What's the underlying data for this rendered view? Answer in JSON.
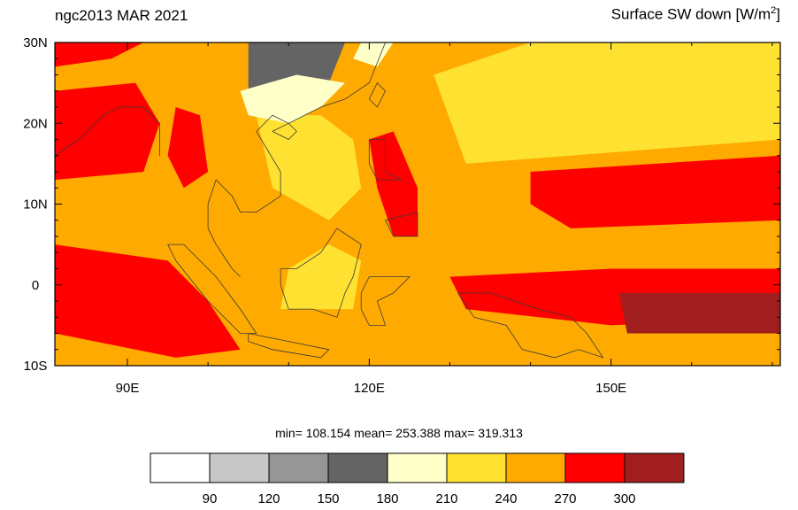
{
  "header": {
    "left_title": "ngc2013 MAR 2021",
    "right_title_main": "Surface SW down [W/m",
    "right_title_sup": "2",
    "right_title_end": "]"
  },
  "stats": "min= 108.154  mean= 253.388  max= 319.313",
  "chart_data": {
    "type": "heatmap",
    "title": "ngc2013 MAR 2021",
    "variable": "Surface SW down [W/m2]",
    "x_axis": {
      "range": [
        81,
        171
      ],
      "ticks": [
        90,
        120,
        150
      ],
      "tick_labels": [
        "90E",
        "120E",
        "150E"
      ],
      "minor_step": 10
    },
    "y_axis": {
      "range": [
        -10,
        30
      ],
      "ticks": [
        -10,
        0,
        10,
        20,
        30
      ],
      "tick_labels": [
        "10S",
        "0",
        "10N",
        "20N",
        "30N"
      ]
    },
    "statistics": {
      "min": 108.154,
      "mean": 253.388,
      "max": 319.313
    },
    "colorbar": {
      "levels": [
        90,
        120,
        150,
        180,
        210,
        240,
        270,
        300
      ],
      "level_labels": [
        "90",
        "120",
        "150",
        "180",
        "210",
        "240",
        "270",
        "300"
      ],
      "colors": [
        "#ffffff",
        "#c8c8c8",
        "#969696",
        "#646464",
        "#ffffc8",
        "#ffe132",
        "#ffaa00",
        "#ff0000",
        "#a01e1e"
      ]
    },
    "regions": [
      {
        "name": "background",
        "value": 255,
        "polygon": [
          [
            81,
            -10
          ],
          [
            171,
            -10
          ],
          [
            171,
            30
          ],
          [
            81,
            30
          ]
        ]
      },
      {
        "name": "pacific-east-clear",
        "value": 230,
        "polygon": [
          [
            132,
            15
          ],
          [
            171,
            18
          ],
          [
            171,
            30
          ],
          [
            140,
            30
          ],
          [
            128,
            26
          ]
        ]
      },
      {
        "name": "south-china-sea-clear",
        "value": 225,
        "polygon": [
          [
            106,
            21
          ],
          [
            114,
            21
          ],
          [
            118,
            18
          ],
          [
            119,
            12
          ],
          [
            115,
            8
          ],
          [
            108,
            12
          ]
        ]
      },
      {
        "name": "borneo-clear",
        "value": 235,
        "polygon": [
          [
            109,
            -3
          ],
          [
            118,
            -3
          ],
          [
            119,
            3
          ],
          [
            115,
            5
          ],
          [
            110,
            2
          ]
        ]
      },
      {
        "name": "bay-of-bengal-red",
        "value": 285,
        "polygon": [
          [
            81,
            13
          ],
          [
            92,
            14
          ],
          [
            94,
            20
          ],
          [
            91,
            25
          ],
          [
            81,
            24
          ]
        ]
      },
      {
        "name": "india-north-red",
        "value": 290,
        "polygon": [
          [
            81,
            27
          ],
          [
            88,
            28
          ],
          [
            92,
            30
          ],
          [
            81,
            30
          ]
        ]
      },
      {
        "name": "myanmar-red",
        "value": 285,
        "polygon": [
          [
            96,
            22
          ],
          [
            99,
            21
          ],
          [
            100,
            14
          ],
          [
            97,
            12
          ],
          [
            95,
            16
          ]
        ]
      },
      {
        "name": "indian-ocean-red",
        "value": 285,
        "polygon": [
          [
            81,
            5
          ],
          [
            95,
            3
          ],
          [
            100,
            -2
          ],
          [
            104,
            -8
          ],
          [
            96,
            -9
          ],
          [
            81,
            -6
          ]
        ]
      },
      {
        "name": "philippines-red",
        "value": 290,
        "polygon": [
          [
            120,
            18
          ],
          [
            123,
            19
          ],
          [
            126,
            12
          ],
          [
            126,
            6
          ],
          [
            123,
            6
          ],
          [
            121,
            12
          ]
        ]
      },
      {
        "name": "west-pacific-band-red",
        "value": 285,
        "polygon": [
          [
            140,
            14
          ],
          [
            171,
            16
          ],
          [
            171,
            8
          ],
          [
            145,
            7
          ],
          [
            140,
            10
          ]
        ]
      },
      {
        "name": "equatorial-band-red",
        "value": 285,
        "polygon": [
          [
            130,
            1
          ],
          [
            150,
            2
          ],
          [
            171,
            2
          ],
          [
            171,
            -4
          ],
          [
            150,
            -5
          ],
          [
            132,
            -3
          ]
        ]
      },
      {
        "name": "pacific-dark-red",
        "value": 310,
        "polygon": [
          [
            151,
            -1
          ],
          [
            171,
            -1
          ],
          [
            171,
            -6
          ],
          [
            152,
            -6
          ]
        ]
      },
      {
        "name": "south-china-clouds",
        "value": 160,
        "polygon": [
          [
            105,
            30
          ],
          [
            117,
            30
          ],
          [
            115,
            25
          ],
          [
            110,
            22
          ],
          [
            105,
            24
          ]
        ]
      },
      {
        "name": "south-china-pale",
        "value": 195,
        "polygon": [
          [
            104,
            24
          ],
          [
            105,
            21
          ],
          [
            110,
            20
          ],
          [
            114,
            22
          ],
          [
            117,
            25
          ],
          [
            111,
            26
          ]
        ]
      },
      {
        "name": "yunnan-pale",
        "value": 200,
        "polygon": [
          [
            119,
            30
          ],
          [
            123,
            30
          ],
          [
            121,
            27
          ],
          [
            118,
            28
          ]
        ]
      }
    ],
    "coastlines": [
      {
        "name": "indochina-malay",
        "points": [
          [
            108,
            21
          ],
          [
            106,
            19
          ],
          [
            109,
            14
          ],
          [
            109,
            11
          ],
          [
            106,
            9
          ],
          [
            104,
            9
          ],
          [
            103,
            11
          ],
          [
            101,
            13
          ],
          [
            100,
            10
          ],
          [
            100,
            7
          ],
          [
            101,
            5
          ],
          [
            103,
            2
          ],
          [
            104,
            1
          ]
        ]
      },
      {
        "name": "china-coast",
        "points": [
          [
            108,
            21
          ],
          [
            110,
            20
          ],
          [
            114,
            22
          ],
          [
            117,
            23
          ],
          [
            120,
            25
          ],
          [
            122,
            30
          ]
        ]
      },
      {
        "name": "sumatra",
        "points": [
          [
            95,
            5
          ],
          [
            97,
            5
          ],
          [
            101,
            1
          ],
          [
            104,
            -3
          ],
          [
            106,
            -6
          ],
          [
            104,
            -6
          ],
          [
            100,
            -2
          ],
          [
            96,
            3
          ],
          [
            95,
            5
          ]
        ]
      },
      {
        "name": "java",
        "points": [
          [
            105,
            -6
          ],
          [
            110,
            -7
          ],
          [
            115,
            -8
          ],
          [
            114,
            -9
          ],
          [
            108,
            -8
          ],
          [
            105,
            -7
          ],
          [
            105,
            -6
          ]
        ]
      },
      {
        "name": "borneo",
        "points": [
          [
            109,
            2
          ],
          [
            111,
            2
          ],
          [
            114,
            4
          ],
          [
            116,
            7
          ],
          [
            119,
            5
          ],
          [
            118,
            1
          ],
          [
            117,
            -1
          ],
          [
            116,
            -4
          ],
          [
            113,
            -3
          ],
          [
            110,
            -3
          ],
          [
            109,
            0
          ],
          [
            109,
            2
          ]
        ]
      },
      {
        "name": "sulawesi",
        "points": [
          [
            119,
            -1
          ],
          [
            120,
            1
          ],
          [
            125,
            1
          ],
          [
            123,
            -1
          ],
          [
            121,
            -2
          ],
          [
            122,
            -5
          ],
          [
            120,
            -5
          ],
          [
            119,
            -3
          ],
          [
            119,
            -1
          ]
        ]
      },
      {
        "name": "luzon",
        "points": [
          [
            120,
            18
          ],
          [
            122,
            18
          ],
          [
            122,
            14
          ],
          [
            124,
            13
          ],
          [
            121,
            13
          ],
          [
            120,
            15
          ],
          [
            120,
            18
          ]
        ]
      },
      {
        "name": "mindanao",
        "points": [
          [
            122,
            8
          ],
          [
            126,
            9
          ],
          [
            126,
            6
          ],
          [
            123,
            6
          ],
          [
            122,
            8
          ]
        ]
      },
      {
        "name": "new-guinea",
        "points": [
          [
            131,
            -1
          ],
          [
            135,
            -1
          ],
          [
            138,
            -2
          ],
          [
            141,
            -3
          ],
          [
            145,
            -4
          ],
          [
            147,
            -6
          ],
          [
            149,
            -9
          ],
          [
            146,
            -8
          ],
          [
            143,
            -9
          ],
          [
            139,
            -8
          ],
          [
            137,
            -5
          ],
          [
            133,
            -4
          ],
          [
            131,
            -1
          ]
        ]
      },
      {
        "name": "taiwan",
        "points": [
          [
            120,
            23
          ],
          [
            121,
            25
          ],
          [
            122,
            24
          ],
          [
            121,
            22
          ],
          [
            120,
            23
          ]
        ]
      },
      {
        "name": "hainan",
        "points": [
          [
            108,
            19
          ],
          [
            110,
            20
          ],
          [
            111,
            19
          ],
          [
            110,
            18
          ],
          [
            108,
            19
          ]
        ]
      },
      {
        "name": "india",
        "points": [
          [
            81,
            16
          ],
          [
            84,
            18
          ],
          [
            87,
            21
          ],
          [
            89,
            22
          ],
          [
            92,
            22
          ],
          [
            94,
            20
          ],
          [
            94,
            16
          ]
        ]
      }
    ]
  }
}
